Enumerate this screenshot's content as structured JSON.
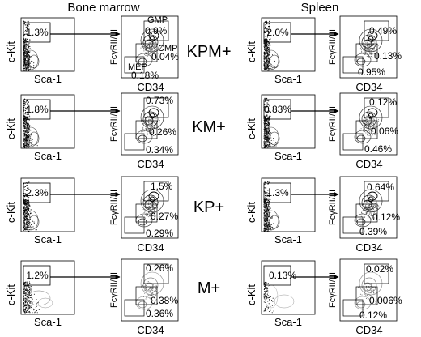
{
  "headers": {
    "left": "Bone marrow",
    "right": "Spleen"
  },
  "axes": {
    "kit": "c-Kit",
    "sca": "Sca-1",
    "fcg": "FcγRII/III",
    "cd34": "CD34"
  },
  "gate_names": {
    "gmp": "GMP",
    "cmp": "CMP",
    "mep": "MEP"
  },
  "rows": [
    {
      "label": "KPM+",
      "bm": {
        "lsk": "1.3%",
        "gmp": "0.9%",
        "cmp": "0.04%",
        "mep": "0.18%"
      },
      "sp": {
        "lsk": "2.0%",
        "gmp": "0.49%",
        "cmp": "0.13%",
        "mep": "0.95%"
      }
    },
    {
      "label": "KM+",
      "bm": {
        "lsk": "1.8%",
        "gmp": "0.73%",
        "cmp": "0.26%",
        "mep": "0.34%"
      },
      "sp": {
        "lsk": "0.83%",
        "gmp": "0.12%",
        "cmp": "0.06%",
        "mep": "0.46%"
      }
    },
    {
      "label": "KP+",
      "bm": {
        "lsk": "2.3%",
        "gmp": "1.5%",
        "cmp": "0.27%",
        "mep": "0.29%"
      },
      "sp": {
        "lsk": "1.3%",
        "gmp": "0.64%",
        "cmp": "0.12%",
        "mep": "0.39%"
      }
    },
    {
      "label": "M+",
      "bm": {
        "lsk": "1.2%",
        "gmp": "0.26%",
        "cmp": "0.38%",
        "mep": "0.36%"
      },
      "sp": {
        "lsk": "0.13%",
        "gmp": "0.02%",
        "cmp": "0.006%",
        "mep": "0.12%"
      }
    }
  ]
}
